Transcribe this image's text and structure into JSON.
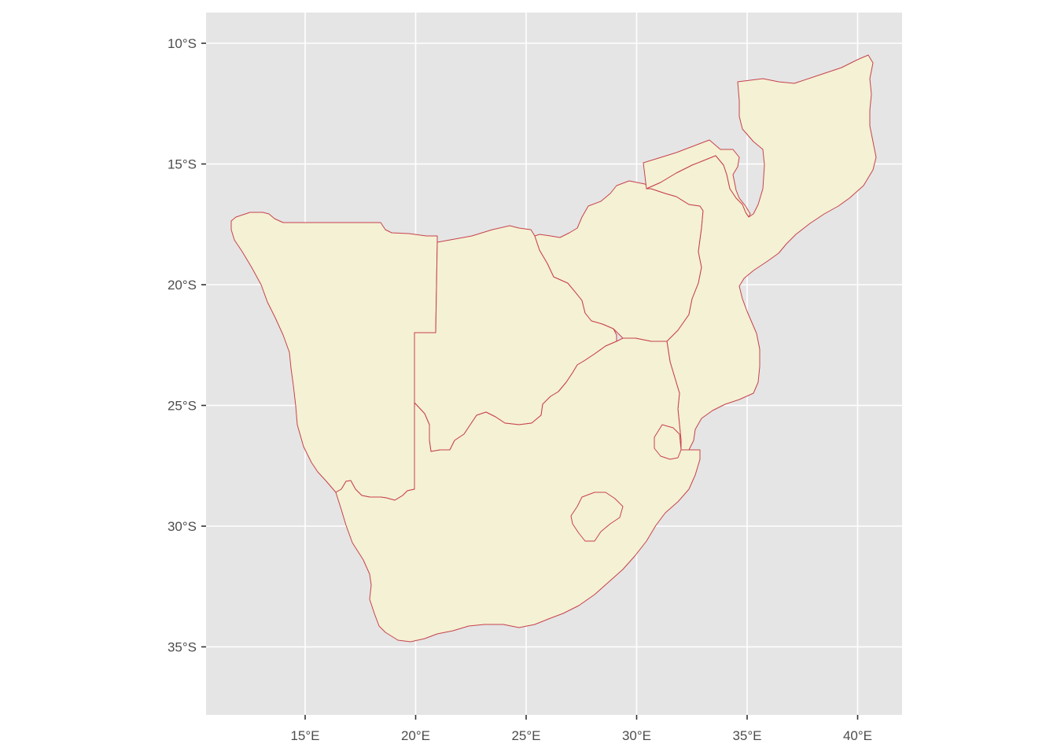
{
  "map": {
    "projection": "geographic longitude/latitude",
    "lon_range": [
      10.6,
      42.0
    ],
    "lat_range": [
      -37.7,
      -8.7
    ],
    "panel_background": "#e5e5e5",
    "grid_color": "#ffffff",
    "land_fill": "#f4f1d4",
    "border_color": "#c8414b",
    "x_ticks": [
      {
        "value": 15,
        "label": "15°E"
      },
      {
        "value": 20,
        "label": "20°E"
      },
      {
        "value": 25,
        "label": "25°E"
      },
      {
        "value": 30,
        "label": "30°E"
      },
      {
        "value": 35,
        "label": "35°E"
      },
      {
        "value": 40,
        "label": "40°E"
      }
    ],
    "y_ticks": [
      {
        "value": -10,
        "label": "10°S"
      },
      {
        "value": -15,
        "label": "15°S"
      },
      {
        "value": -20,
        "label": "20°S"
      },
      {
        "value": -25,
        "label": "25°S"
      },
      {
        "value": -30,
        "label": "30°S"
      },
      {
        "value": -35,
        "label": "35°S"
      }
    ],
    "countries": [
      "namibia",
      "botswana",
      "zimbabwe",
      "zambia-portion",
      "mozambique",
      "south-africa",
      "lesotho",
      "eswatini"
    ]
  }
}
